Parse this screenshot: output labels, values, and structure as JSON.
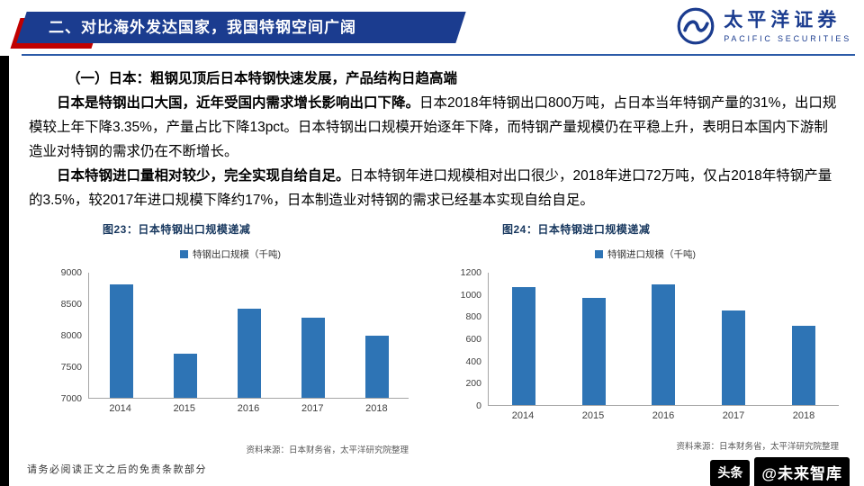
{
  "header": {
    "title": "二、对比海外发达国家，我国特钢空间广阔",
    "logo_cn": "太平洋证券",
    "logo_en": "PACIFIC SECURITIES"
  },
  "body": {
    "heading": "（一）日本：粗钢见顶后日本特钢快速发展，产品结构日趋高端",
    "para1_lead": "日本是特钢出口大国，近年受国内需求增长影响出口下降。",
    "para1_rest": "日本2018年特钢出口800万吨，占日本当年特钢产量的31%，出口规模较上年下降3.35%，产量占比下降13pct。日本特钢出口规模开始逐年下降，而特钢产量规模仍在平稳上升，表明日本国内下游制造业对特钢的需求仍在不断增长。",
    "para2_lead": "日本特钢进口量相对较少，完全实现自给自足。",
    "para2_rest": "日本特钢年进口规模相对出口很少，2018年进口72万吨，仅占2018年特钢产量的3.5%，较2017年进口规模下降约17%，日本制造业对特钢的需求已经基本实现自给自足。"
  },
  "chart_data": [
    {
      "type": "bar",
      "title": "图23：日本特钢出口规模递减",
      "legend": "特钢出口规模（千吨)",
      "categories": [
        "2014",
        "2015",
        "2016",
        "2017",
        "2018"
      ],
      "values": [
        8820,
        7700,
        8430,
        8280,
        8000
      ],
      "ylim": [
        7000,
        9000
      ],
      "yticks": [
        7000,
        7500,
        8000,
        8500,
        9000
      ],
      "bar_color": "#2E74B5",
      "grid": false,
      "legend_position": "top-center",
      "source": "资料来源：日本财务省，太平洋研究院整理"
    },
    {
      "type": "bar",
      "title": "图24：日本特钢进口规模递减",
      "legend": "特钢进口规模（千吨)",
      "categories": [
        "2014",
        "2015",
        "2016",
        "2017",
        "2018"
      ],
      "values": [
        1070,
        975,
        1090,
        860,
        720
      ],
      "ylim": [
        0,
        1200
      ],
      "yticks": [
        0,
        200,
        400,
        600,
        800,
        1000,
        1200
      ],
      "bar_color": "#2E74B5",
      "grid": false,
      "legend_position": "top-center",
      "source": "资料来源：日本财务省，太平洋研究院整理"
    }
  ],
  "footer": {
    "disclaimer": "请务必阅读正文之后的免责条款部分",
    "watermark_left": "头条",
    "watermark_right": "@未来智库"
  }
}
